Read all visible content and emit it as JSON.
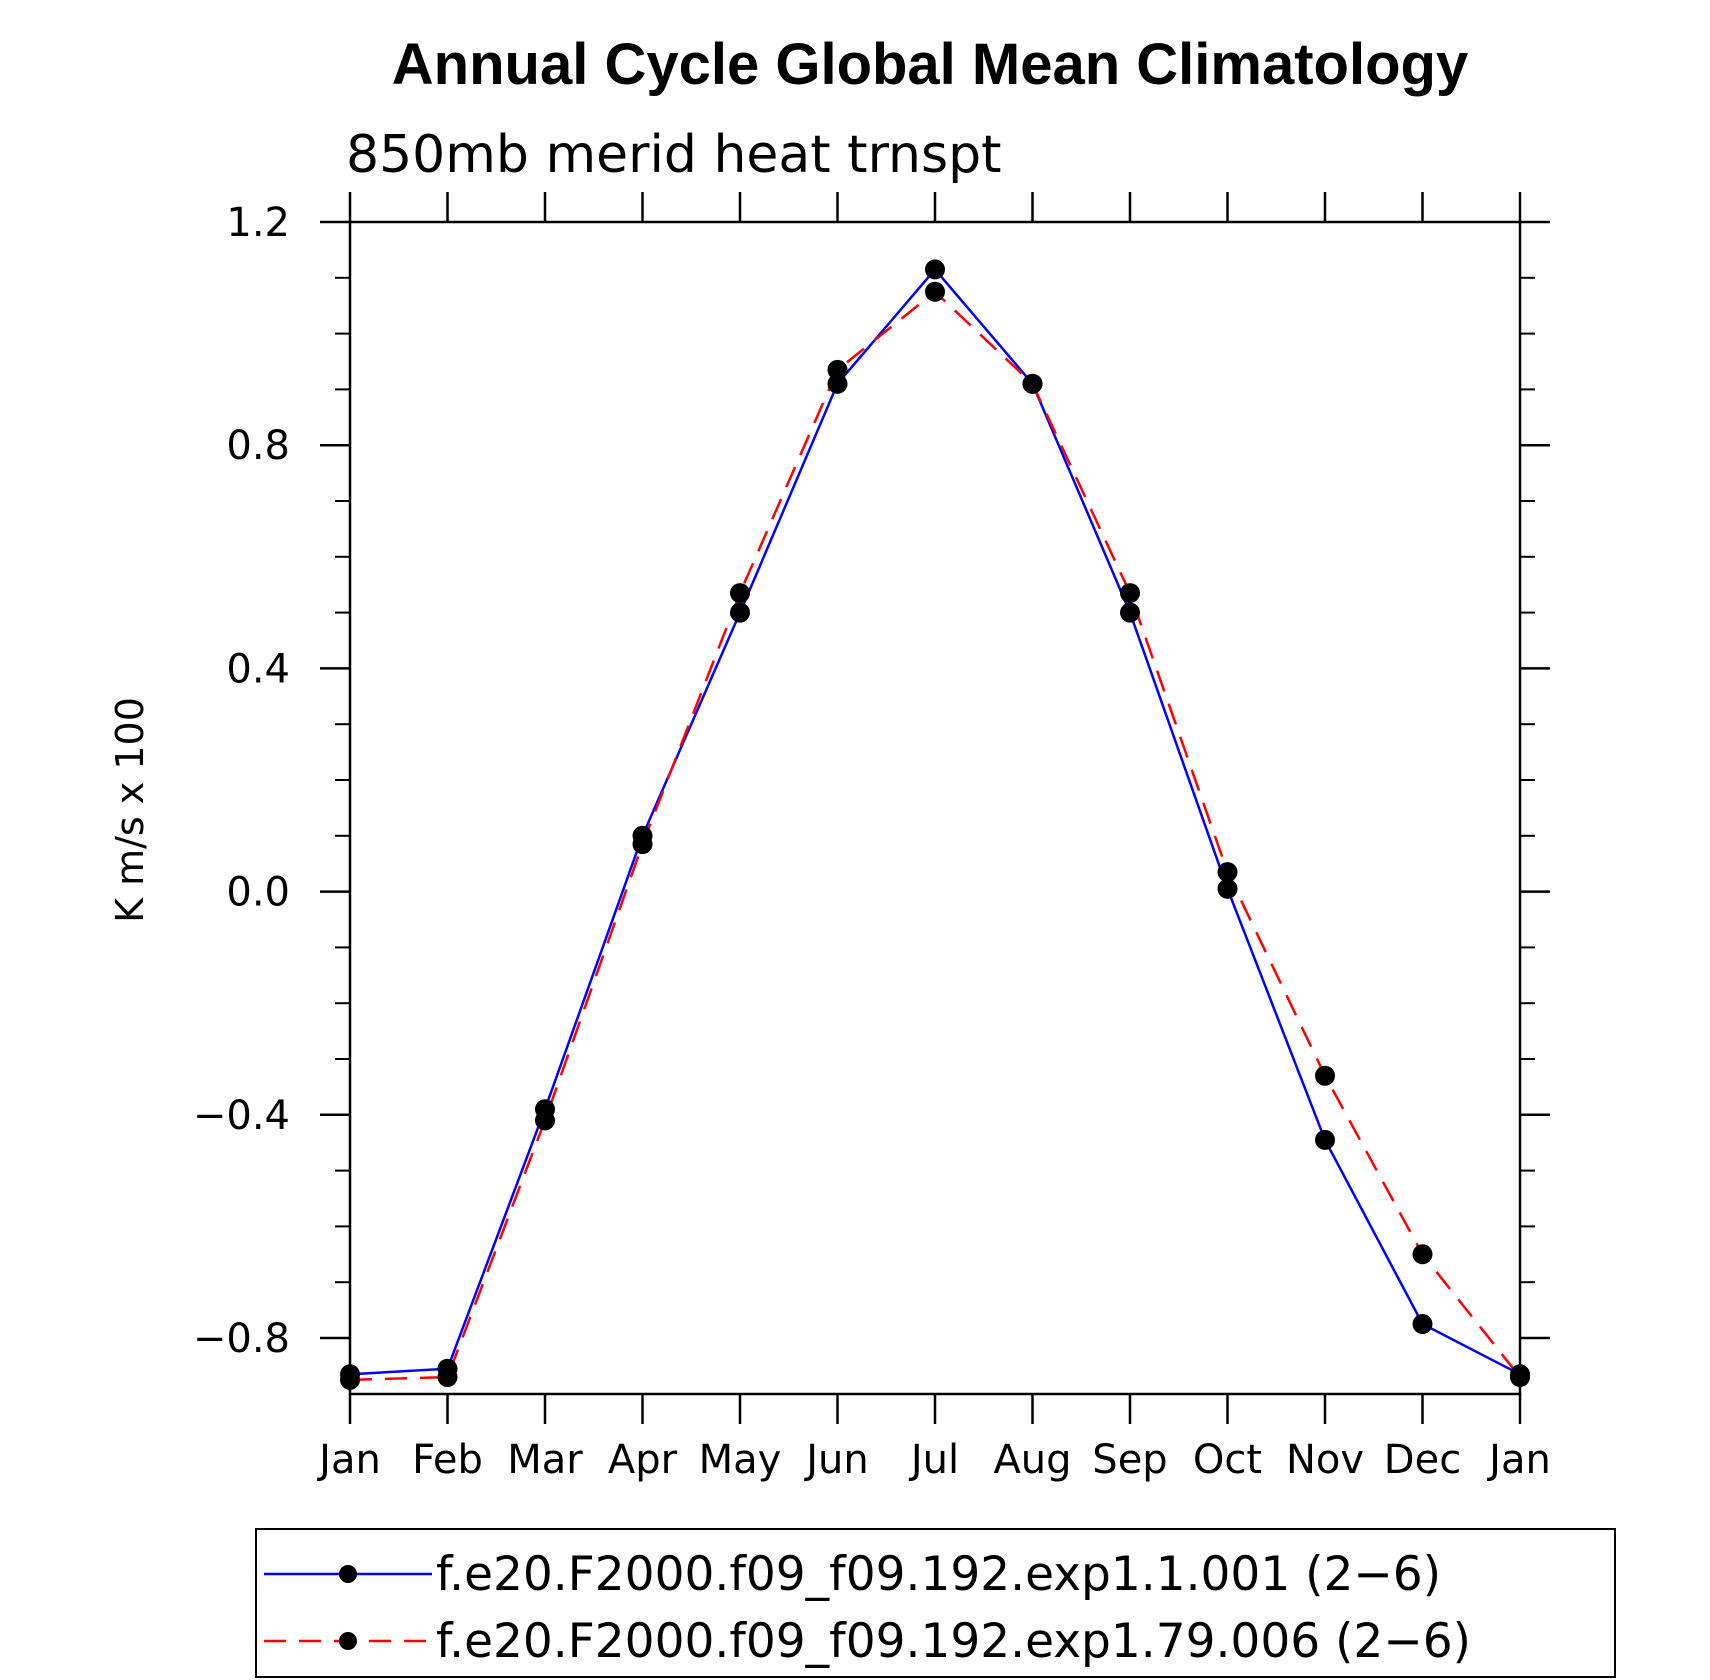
{
  "chart_data": {
    "type": "line",
    "title": "Annual Cycle Global Mean Climatology",
    "subtitle": "850mb merid heat trnspt",
    "xlabel": "",
    "ylabel": "K m/s x 100",
    "categories": [
      "Jan",
      "Feb",
      "Mar",
      "Apr",
      "May",
      "Jun",
      "Jul",
      "Aug",
      "Sep",
      "Oct",
      "Nov",
      "Dec",
      "Jan"
    ],
    "ylim": [
      -0.9,
      1.2
    ],
    "yticks": [
      1.2,
      0.8,
      0.4,
      0.0,
      -0.4,
      -0.8
    ],
    "ytick_labels": [
      "1.2",
      "0.8",
      "0.4",
      "0.0",
      "−0.4",
      "−0.8"
    ],
    "series": [
      {
        "name": "f.e20.F2000.f09_f09.192.exp1.1.001 (2−6)",
        "color": "#0000ff",
        "dash": "solid",
        "values": [
          -0.865,
          -0.855,
          -0.39,
          0.1,
          0.5,
          0.91,
          1.115,
          0.91,
          0.5,
          0.005,
          -0.445,
          -0.775,
          -0.865
        ]
      },
      {
        "name": "f.e20.F2000.f09_f09.192.exp1.79.006 (2−6)",
        "color": "#ff0000",
        "dash": "dashed",
        "values": [
          -0.875,
          -0.87,
          -0.41,
          0.085,
          0.535,
          0.935,
          1.075,
          0.91,
          0.535,
          0.035,
          -0.33,
          -0.65,
          -0.87
        ]
      }
    ],
    "grid": false,
    "legend_position": "bottom"
  }
}
